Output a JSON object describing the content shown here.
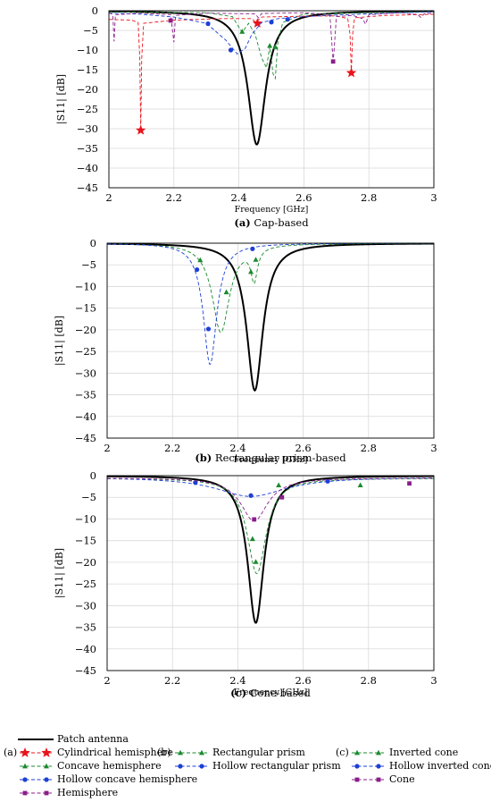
{
  "chart_data": [
    {
      "type": "line",
      "caption_label": "(a)",
      "caption_text": "Cap-based",
      "xlabel": "Frequency [GHz]",
      "ylabel": "|S11| [dB]",
      "xlim": [
        2,
        3
      ],
      "ylim": [
        -45,
        0
      ],
      "xticks": [
        2,
        2.2,
        2.4,
        2.6,
        2.8,
        3
      ],
      "yticks": [
        0,
        -5,
        -10,
        -15,
        -20,
        -25,
        -30,
        -35,
        -40,
        -45
      ],
      "grid": true,
      "series": [
        {
          "name": "Patch antenna",
          "color": "#000000",
          "dash": "solid",
          "marker": "none",
          "shape": "lorentz",
          "f0": 2.455,
          "depth": 34,
          "gamma": 0.033,
          "floor": 0
        },
        {
          "name": "Cylindrical hemisphere",
          "color": "#e8141c",
          "dash": "dashed",
          "marker": "star",
          "points": [
            [
              2.0,
              -2.2
            ],
            [
              2.07,
              -2.4
            ],
            [
              2.09,
              -3
            ],
            [
              2.095,
              -12
            ],
            [
              2.098,
              -30.4
            ],
            [
              2.101,
              -12
            ],
            [
              2.107,
              -3.2
            ],
            [
              2.2,
              -2.4
            ],
            [
              2.35,
              -2.0
            ],
            [
              2.44,
              -2.0
            ],
            [
              2.452,
              -3
            ],
            [
              2.457,
              -2.5
            ],
            [
              2.47,
              -1.6
            ],
            [
              2.6,
              -1.4
            ],
            [
              2.7,
              -1.3
            ],
            [
              2.735,
              -2.0
            ],
            [
              2.742,
              -6
            ],
            [
              2.746,
              -15.8
            ],
            [
              2.75,
              -6
            ],
            [
              2.756,
              -1.8
            ],
            [
              2.85,
              -1.2
            ],
            [
              3.0,
              -0.9
            ]
          ],
          "markers": [
            [
              2.098,
              -30.4
            ],
            [
              2.457,
              -3.2
            ],
            [
              2.746,
              -15.8
            ]
          ]
        },
        {
          "name": "Concave hemisphere",
          "color": "#1a8a2e",
          "dash": "dashed",
          "marker": "triangle",
          "points": [
            [
              2.0,
              -0.3
            ],
            [
              2.3,
              -0.5
            ],
            [
              2.38,
              -1.5
            ],
            [
              2.41,
              -5.5
            ],
            [
              2.43,
              -3.2
            ],
            [
              2.45,
              -6
            ],
            [
              2.47,
              -12
            ],
            [
              2.485,
              -14.5
            ],
            [
              2.495,
              -9
            ],
            [
              2.505,
              -16
            ],
            [
              2.512,
              -17.2
            ],
            [
              2.52,
              -8
            ],
            [
              2.535,
              -3
            ],
            [
              2.6,
              -0.8
            ],
            [
              3.0,
              -0.2
            ]
          ],
          "markers": [
            [
              2.41,
              -5.3
            ],
            [
              2.495,
              -8.9
            ],
            [
              2.512,
              -9.2
            ]
          ]
        },
        {
          "name": "Hollow concave hemisphere",
          "color": "#1c3fd6",
          "dash": "dashed",
          "marker": "circle",
          "points": [
            [
              2.0,
              -0.6
            ],
            [
              2.1,
              -0.9
            ],
            [
              2.2,
              -1.6
            ],
            [
              2.3,
              -3.2
            ],
            [
              2.36,
              -7.5
            ],
            [
              2.395,
              -11
            ],
            [
              2.42,
              -9.5
            ],
            [
              2.44,
              -6
            ],
            [
              2.47,
              -3
            ],
            [
              2.52,
              -2
            ],
            [
              2.6,
              -1.5
            ],
            [
              2.7,
              -1.1
            ],
            [
              2.8,
              -0.8
            ],
            [
              2.9,
              -0.5
            ],
            [
              3.0,
              -0.3
            ]
          ],
          "markers": [
            [
              2.305,
              -3.3
            ],
            [
              2.375,
              -10
            ],
            [
              2.5,
              -2.9
            ],
            [
              2.55,
              -2.2
            ]
          ]
        },
        {
          "name": "Hemisphere",
          "color": "#8a1e8a",
          "dash": "dashed",
          "marker": "square",
          "points": [
            [
              2.0,
              -0.5
            ],
            [
              2.012,
              -1
            ],
            [
              2.016,
              -7.8
            ],
            [
              2.02,
              -1
            ],
            [
              2.1,
              -0.6
            ],
            [
              2.19,
              -1
            ],
            [
              2.2,
              -8
            ],
            [
              2.205,
              -1.2
            ],
            [
              2.3,
              -0.6
            ],
            [
              2.45,
              -0.8
            ],
            [
              2.46,
              -1.8
            ],
            [
              2.47,
              -0.7
            ],
            [
              2.6,
              -0.5
            ],
            [
              2.68,
              -1
            ],
            [
              2.69,
              -12.9
            ],
            [
              2.693,
              -10
            ],
            [
              2.7,
              -1.5
            ],
            [
              2.75,
              -1.2
            ],
            [
              2.78,
              -2
            ],
            [
              2.79,
              -3.4
            ],
            [
              2.8,
              -1
            ],
            [
              2.9,
              -0.5
            ],
            [
              2.95,
              -1
            ],
            [
              2.96,
              -1.7
            ],
            [
              2.97,
              -0.8
            ],
            [
              3.0,
              -0.6
            ]
          ],
          "markers": [
            [
              2.19,
              -2.5
            ],
            [
              2.69,
              -12.9
            ]
          ]
        }
      ]
    },
    {
      "type": "line",
      "caption_label": "(b)",
      "caption_text": "Rectangular prism-based",
      "xlabel": "Frequency [GHz]",
      "ylabel": "|S11| [dB]",
      "xlim": [
        2,
        3
      ],
      "ylim": [
        -45,
        0
      ],
      "xticks": [
        2,
        2.2,
        2.4,
        2.6,
        2.8,
        3
      ],
      "yticks": [
        0,
        -5,
        -10,
        -15,
        -20,
        -25,
        -30,
        -35,
        -40,
        -45
      ],
      "grid": true,
      "series": [
        {
          "name": "Patch antenna",
          "color": "#000000",
          "dash": "solid",
          "marker": "none",
          "shape": "lorentz",
          "f0": 2.452,
          "depth": 34,
          "gamma": 0.03,
          "floor": 0
        },
        {
          "name": "Rectangular prism",
          "color": "#1a8a2e",
          "dash": "dashed",
          "marker": "triangle",
          "shape": "lorentz2",
          "f0": 2.348,
          "depth": 20.5,
          "gamma": 0.032,
          "f1": 2.45,
          "depth1": 7.5,
          "gamma1": 0.012,
          "floor": 0,
          "markers": [
            [
              2.285,
              -3.9
            ],
            [
              2.365,
              -11.3
            ],
            [
              2.44,
              -6.6
            ],
            [
              2.455,
              -3.8
            ]
          ]
        },
        {
          "name": "Hollow rectangular prism",
          "color": "#1c3fd6",
          "dash": "dashed",
          "marker": "circle",
          "shape": "lorentz",
          "f0": 2.315,
          "depth": 28,
          "gamma": 0.025,
          "floor": 0,
          "markers": [
            [
              2.275,
              -6.1
            ],
            [
              2.31,
              -19.8
            ],
            [
              2.445,
              -1.3
            ]
          ]
        }
      ]
    },
    {
      "type": "line",
      "caption_label": "(c)",
      "caption_text": "Cone-based",
      "xlabel": "Frequency [GHz]",
      "ylabel": "|S11| [dB]",
      "xlim": [
        2,
        3
      ],
      "ylim": [
        -45,
        0
      ],
      "xticks": [
        2,
        2.2,
        2.4,
        2.6,
        2.8,
        3
      ],
      "yticks": [
        0,
        -5,
        -10,
        -15,
        -20,
        -25,
        -30,
        -35,
        -40,
        -45
      ],
      "grid": true,
      "series": [
        {
          "name": "Patch antenna",
          "color": "#000000",
          "dash": "solid",
          "marker": "none",
          "shape": "lorentz",
          "f0": 2.455,
          "depth": 34,
          "gamma": 0.03,
          "floor": 0
        },
        {
          "name": "Inverted cone",
          "color": "#1a8a2e",
          "dash": "dashed",
          "marker": "triangle",
          "shape": "lorentz",
          "f0": 2.458,
          "depth": 22,
          "gamma": 0.035,
          "floor": -0.6,
          "markers": [
            [
              2.445,
              -14.6
            ],
            [
              2.455,
              -19.9
            ],
            [
              2.525,
              -2.2
            ],
            [
              2.775,
              -2.2
            ]
          ]
        },
        {
          "name": "Hollow inverted cone",
          "color": "#1c3fd6",
          "dash": "dashed",
          "marker": "circle",
          "shape": "lorentz",
          "f0": 2.44,
          "depth": 4.5,
          "gamma": 0.13,
          "floor": -0.3,
          "markers": [
            [
              2.27,
              -1.6
            ],
            [
              2.44,
              -4.6
            ],
            [
              2.675,
              -1.3
            ]
          ]
        },
        {
          "name": "Cone",
          "color": "#8a1e8a",
          "dash": "dashed",
          "marker": "square",
          "shape": "lorentz",
          "f0": 2.45,
          "depth": 10,
          "gamma": 0.05,
          "floor": -0.5,
          "markers": [
            [
              2.45,
              -10.1
            ],
            [
              2.535,
              -5
            ],
            [
              2.925,
              -1.8
            ]
          ]
        }
      ]
    }
  ],
  "legend": {
    "patch": "Patch antenna",
    "group_a_label": "(a)",
    "group_b_label": "(b)",
    "group_c_label": "(c)",
    "a_items": [
      "Cylindrical hemisphere",
      "Concave hemisphere",
      "Hollow concave hemisphere",
      "Hemisphere"
    ],
    "b_items": [
      "Rectangular prism",
      "Hollow rectangular prism"
    ],
    "c_items": [
      "Inverted cone",
      "Hollow inverted cone",
      "Cone"
    ]
  },
  "colors": {
    "patch": "#000000",
    "red": "#e8141c",
    "green": "#1a8a2e",
    "blue": "#1c3fd6",
    "purple": "#8a1e8a",
    "grid": "#d9d9d9"
  }
}
